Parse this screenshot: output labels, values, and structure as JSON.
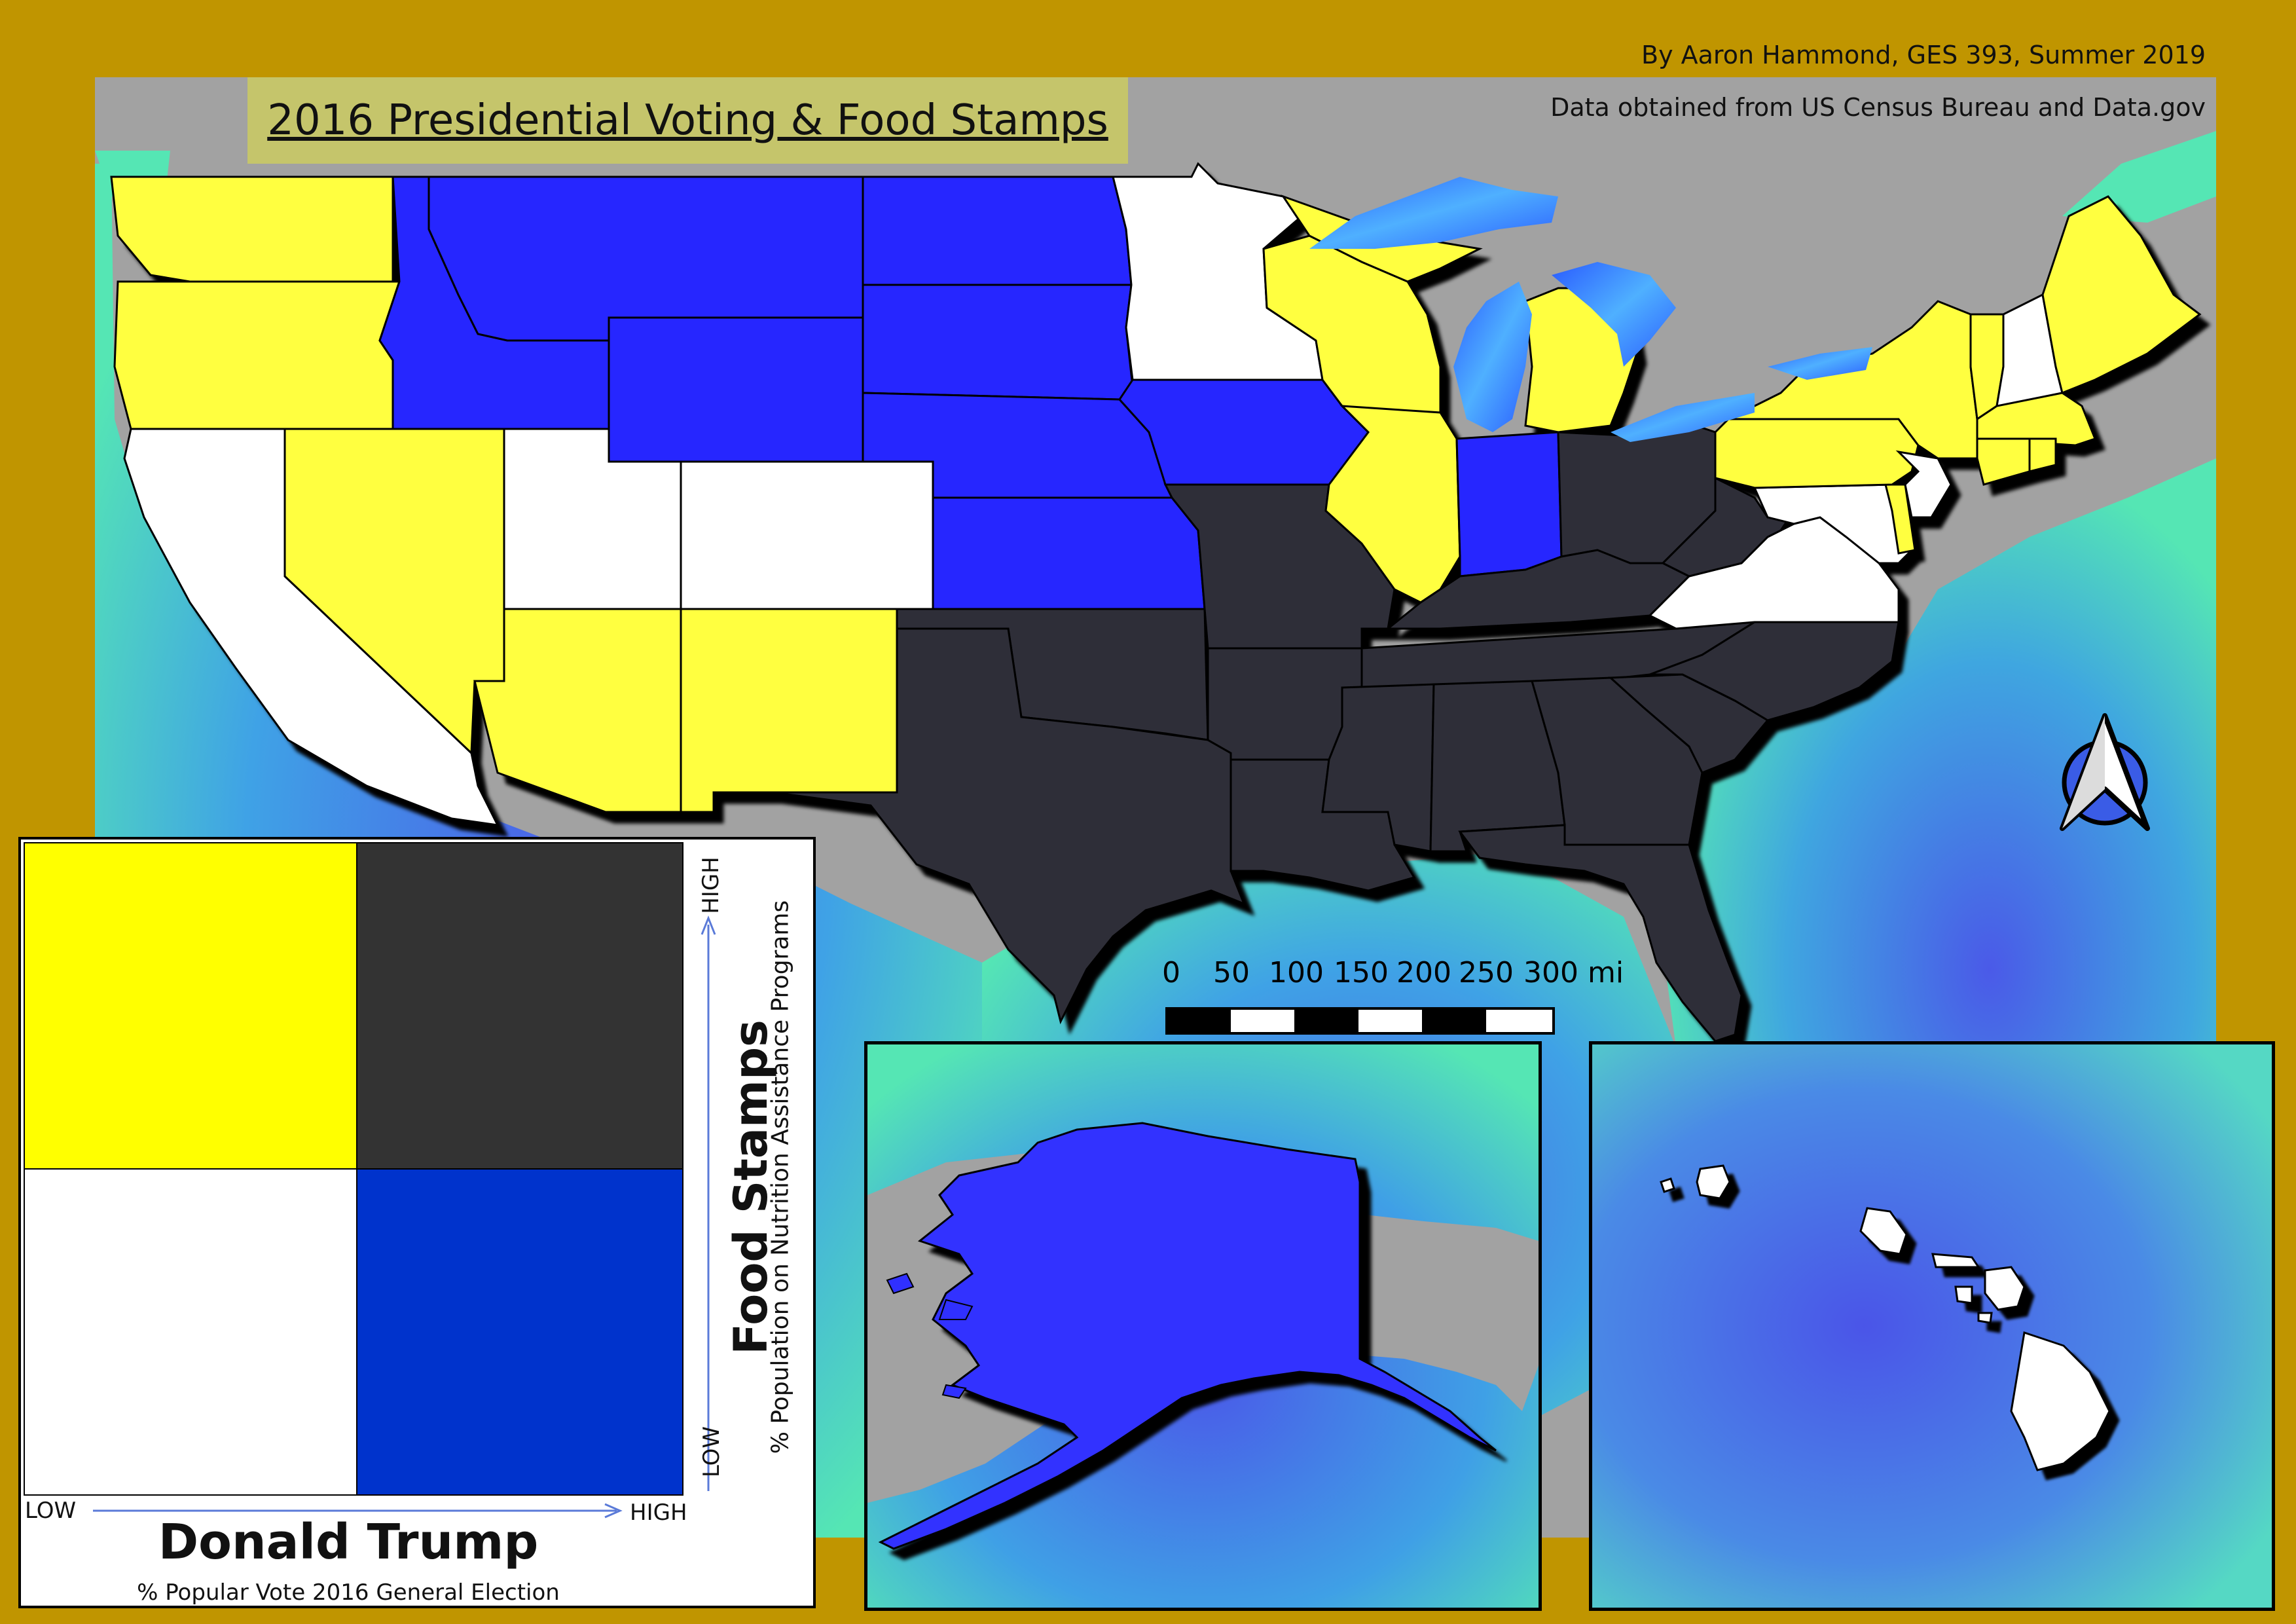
{
  "title": "2016 Presidential Voting & Food Stamps",
  "author_credit": "By Aaron Hammond, GES 393, Summer 2019",
  "source_credit": "Data obtained from US Census Bureau and Data.gov",
  "colors": {
    "background_border": "#c09500",
    "land_other": "#a2a2a2",
    "high_food_low_trump": "#ffff40",
    "high_food_high_trump": "#2f2f37",
    "low_food_low_trump": "#ffffff",
    "low_food_high_trump": "#2828ff",
    "water": "#3a86ff",
    "ocean_deep": "#4a66e8",
    "ocean_shallow": "#55e6b4"
  },
  "legend": {
    "vertical_axis_title": "Food Stamps",
    "vertical_axis_subtitle": "% Population on Nutrition Assistance Programs",
    "horizontal_axis_title": "Donald Trump",
    "horizontal_axis_subtitle": "% Popular Vote 2016 General Election",
    "low_label": "LOW",
    "high_label": "HIGH",
    "cells": [
      {
        "position": "top-left",
        "food_stamps": "high",
        "trump_vote": "low",
        "color": "#ffff00"
      },
      {
        "position": "top-right",
        "food_stamps": "high",
        "trump_vote": "high",
        "color": "#333333"
      },
      {
        "position": "bottom-left",
        "food_stamps": "low",
        "trump_vote": "low",
        "color": "#ffffff"
      },
      {
        "position": "bottom-right",
        "food_stamps": "low",
        "trump_vote": "high",
        "color": "#0033cc"
      }
    ]
  },
  "scale_bar": {
    "labels": [
      "0",
      "50",
      "100",
      "150",
      "200",
      "250",
      "300 mi"
    ]
  },
  "north_arrow": {
    "icon": "north-arrow-icon"
  },
  "insets": [
    {
      "name": "alaska",
      "state_class": "low_food_high_trump"
    },
    {
      "name": "hawaii",
      "state_class": "low_food_low_trump"
    }
  ],
  "state_classes": {
    "high_food_low_trump": [
      "WA",
      "OR",
      "NV",
      "AZ",
      "NM",
      "IL",
      "WI",
      "MI",
      "NY",
      "PA",
      "VT",
      "CT",
      "RI",
      "MA",
      "ME",
      "DE"
    ],
    "high_food_high_trump": [
      "MO",
      "OK",
      "TX",
      "AR",
      "LA",
      "MS",
      "AL",
      "GA",
      "SC",
      "NC",
      "TN",
      "KY",
      "WV",
      "OH",
      "FL"
    ],
    "low_food_low_trump": [
      "CA",
      "UT",
      "CO",
      "MN",
      "NH",
      "NJ",
      "VA",
      "MD"
    ],
    "low_food_high_trump": [
      "ID",
      "MT",
      "WY",
      "ND",
      "SD",
      "NE",
      "KS",
      "IA",
      "IN",
      "AK"
    ]
  }
}
